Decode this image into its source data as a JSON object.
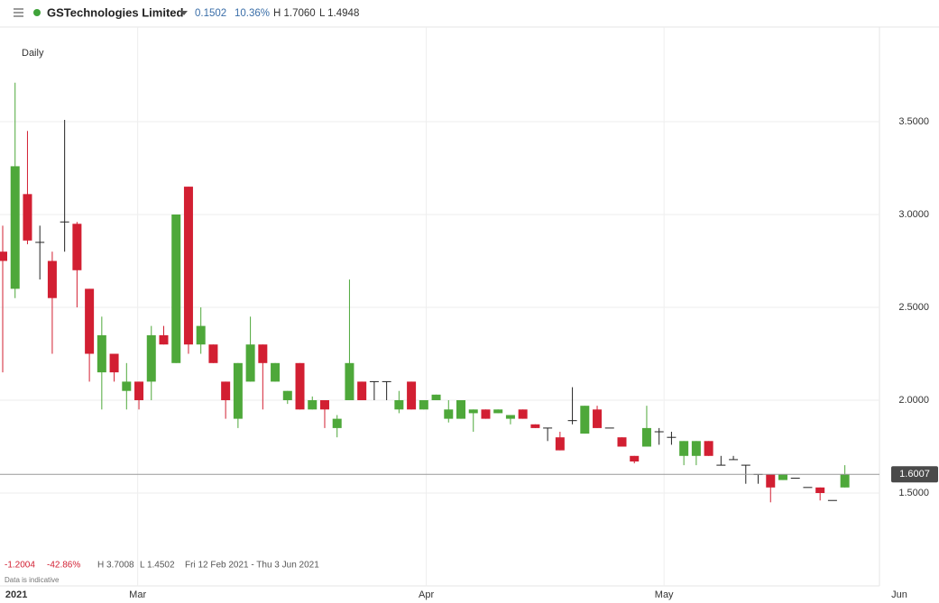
{
  "header": {
    "name": "GSTechnologies Limited",
    "change": "0.1502",
    "change_pct": "10.36%",
    "high": "H 1.7060",
    "low": "L 1.4948"
  },
  "summary": {
    "change": "-1.2004",
    "change_pct": "-42.86%",
    "high": "H 3.7008",
    "low": "L 1.4502",
    "range": "Fri 12 Feb 2021 - Thu 3 Jun 2021",
    "note": "Data is indicative"
  },
  "chart_data": {
    "type": "candlestick",
    "interval": "Daily",
    "up_color": "#4ea83a",
    "down_color": "#d21f32",
    "open": [
      2.8,
      2.6,
      3.11,
      2.85,
      2.75,
      2.96,
      2.95,
      2.6,
      2.15,
      2.25,
      2.05,
      2.1,
      2.1,
      2.35,
      2.2,
      3.15,
      2.3,
      2.3,
      2.1,
      1.9,
      2.1,
      2.3,
      2.1,
      2.0,
      2.2,
      1.95,
      2.0,
      1.85,
      2.0,
      2.1,
      2.1,
      2.1,
      1.95,
      2.1,
      1.95,
      2.0,
      1.9,
      1.9,
      1.93,
      1.95,
      1.93,
      1.9,
      1.95,
      1.87,
      1.85,
      1.8,
      1.89,
      1.82,
      1.95,
      1.85,
      1.8,
      1.7,
      1.75,
      1.83,
      1.8,
      1.7,
      1.7,
      1.78,
      1.65,
      1.68,
      1.65,
      1.6,
      1.6,
      1.57,
      1.58,
      1.53,
      1.53,
      1.46,
      1.53
    ],
    "high": [
      2.94,
      3.71,
      3.45,
      2.94,
      2.8,
      3.51,
      2.96,
      2.6,
      2.45,
      2.25,
      2.2,
      2.1,
      2.4,
      2.4,
      3.0,
      3.15,
      2.5,
      2.3,
      2.1,
      2.2,
      2.45,
      2.3,
      2.2,
      2.05,
      2.2,
      2.02,
      2.0,
      1.92,
      2.65,
      2.1,
      2.1,
      2.1,
      2.05,
      2.1,
      2.0,
      2.03,
      2.0,
      2.0,
      1.95,
      1.95,
      1.95,
      1.92,
      1.95,
      1.87,
      1.85,
      1.83,
      2.07,
      1.97,
      1.97,
      1.85,
      1.8,
      1.7,
      1.97,
      1.85,
      1.83,
      1.78,
      1.78,
      1.78,
      1.7,
      1.7,
      1.65,
      1.6,
      1.6,
      1.6,
      1.58,
      1.53,
      1.53,
      1.46,
      1.65
    ],
    "low": [
      2.15,
      2.55,
      2.84,
      2.65,
      2.25,
      2.8,
      2.5,
      2.1,
      1.95,
      2.1,
      1.95,
      1.95,
      2.0,
      2.3,
      2.2,
      2.25,
      2.25,
      2.2,
      1.9,
      1.85,
      2.1,
      1.95,
      2.1,
      1.98,
      1.95,
      1.95,
      1.85,
      1.8,
      2.0,
      2.0,
      2.0,
      2.0,
      1.93,
      1.95,
      1.95,
      2.0,
      1.88,
      1.9,
      1.83,
      1.9,
      1.93,
      1.87,
      1.9,
      1.85,
      1.78,
      1.73,
      1.87,
      1.82,
      1.85,
      1.85,
      1.75,
      1.66,
      1.75,
      1.76,
      1.76,
      1.65,
      1.65,
      1.7,
      1.65,
      1.68,
      1.55,
      1.55,
      1.45,
      1.57,
      1.58,
      1.53,
      1.46,
      1.46,
      1.53
    ],
    "close": [
      2.75,
      3.26,
      2.86,
      2.85,
      2.55,
      2.96,
      2.7,
      2.25,
      2.35,
      2.15,
      2.1,
      2.0,
      2.35,
      2.3,
      3.0,
      2.3,
      2.4,
      2.2,
      2.0,
      2.2,
      2.3,
      2.2,
      2.2,
      2.05,
      1.95,
      2.0,
      1.95,
      1.9,
      2.2,
      2.0,
      2.1,
      2.1,
      2.0,
      1.95,
      2.0,
      2.03,
      1.95,
      2.0,
      1.95,
      1.9,
      1.95,
      1.92,
      1.9,
      1.85,
      1.85,
      1.73,
      1.89,
      1.97,
      1.85,
      1.85,
      1.75,
      1.67,
      1.85,
      1.83,
      1.8,
      1.78,
      1.78,
      1.7,
      1.65,
      1.68,
      1.65,
      1.6,
      1.53,
      1.6,
      1.58,
      1.53,
      1.5,
      1.46,
      1.6
    ],
    "last_price": 1.6007,
    "ylim": [
      1.0,
      4.0
    ],
    "yticks": [
      {
        "value": 1.5,
        "label": "1.5000"
      },
      {
        "value": 2.0,
        "label": "2.0000"
      },
      {
        "value": 2.5,
        "label": "2.5000"
      },
      {
        "value": 3.0,
        "label": "3.0000"
      },
      {
        "value": 3.5,
        "label": "3.5000"
      }
    ],
    "xlim": [
      -0.5,
      75.5
    ],
    "xticks": [
      {
        "value": 1.1,
        "label": "2021"
      },
      {
        "value": 10.9,
        "label": "Mar"
      },
      {
        "value": 34.2,
        "label": "Apr"
      },
      {
        "value": 53.4,
        "label": "May"
      },
      {
        "value": 72.4,
        "label": "Jun"
      }
    ],
    "grid": true
  }
}
